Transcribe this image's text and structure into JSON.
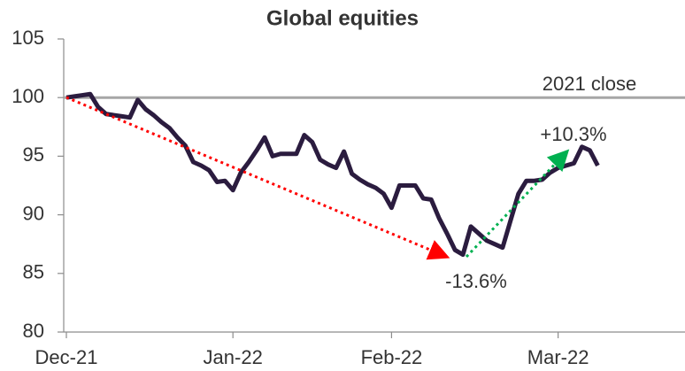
{
  "chart_data": {
    "type": "line",
    "title": "Global equities",
    "x": [
      0,
      1,
      2,
      3,
      4,
      5,
      6,
      7,
      8,
      9,
      10,
      11,
      12,
      13,
      14,
      15,
      16,
      17,
      18,
      19,
      20,
      21,
      22,
      23,
      24,
      25,
      26,
      27,
      28,
      29,
      30,
      31,
      32,
      33,
      34,
      35,
      36,
      37,
      38,
      39,
      40,
      41,
      42,
      43,
      44,
      45,
      46,
      47,
      48,
      49,
      50,
      51,
      52,
      53,
      54,
      55,
      56,
      57,
      58,
      59,
      60,
      61,
      62,
      63,
      64,
      65,
      66,
      67
    ],
    "series": [
      {
        "name": "Global equities",
        "color": "#2b1c3f",
        "values": [
          100.0,
          100.1,
          100.2,
          100.3,
          99.2,
          98.6,
          98.5,
          98.4,
          98.3,
          99.8,
          99.0,
          98.5,
          97.9,
          97.4,
          96.6,
          95.9,
          94.5,
          94.2,
          93.8,
          92.8,
          92.9,
          92.1,
          93.6,
          94.5,
          95.5,
          96.6,
          95.0,
          95.2,
          95.2,
          95.2,
          96.8,
          96.2,
          94.7,
          94.3,
          94.0,
          95.4,
          93.5,
          93.0,
          92.6,
          92.3,
          91.8,
          90.6,
          92.5,
          92.5,
          92.5,
          91.4,
          91.3,
          89.7,
          88.4,
          87.0,
          86.6,
          89.0,
          88.4,
          87.8,
          87.5,
          87.2,
          89.5,
          91.8,
          92.9,
          92.9,
          93.0,
          93.6,
          94.0,
          94.2,
          94.4,
          95.8,
          95.5,
          94.2
        ]
      }
    ],
    "xlim": [
      0,
      78
    ],
    "xticks": [
      {
        "value": 0,
        "label": "Dec-21"
      },
      {
        "value": 21,
        "label": "Jan-22"
      },
      {
        "value": 41,
        "label": "Feb-22"
      },
      {
        "value": 62,
        "label": "Mar-22"
      }
    ],
    "ylim": [
      80,
      105
    ],
    "yticks": [
      80,
      85,
      90,
      95,
      100,
      105
    ],
    "reference_line": {
      "value": 100,
      "label": "2021 close",
      "color": "#a6a6a6"
    },
    "annotations": [
      {
        "text": "+10.3%"
      },
      {
        "text": "-13.6%"
      }
    ]
  }
}
